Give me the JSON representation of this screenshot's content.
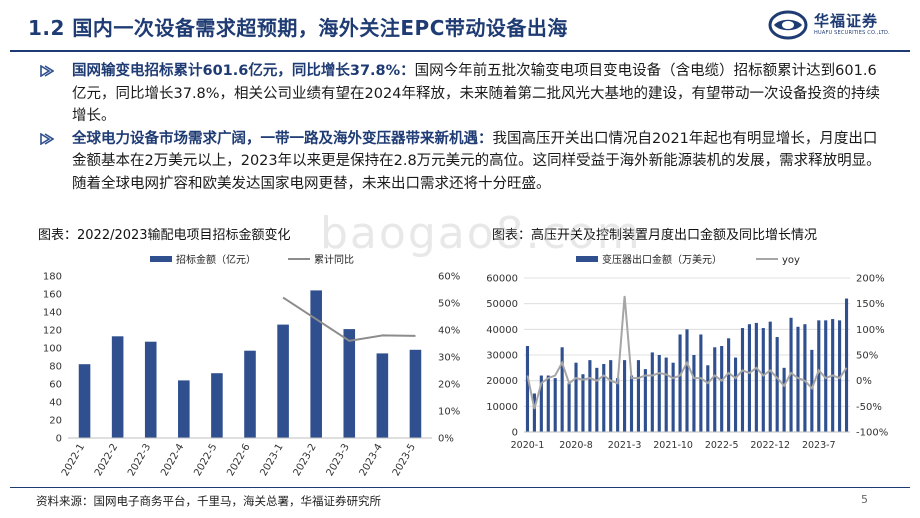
{
  "header": {
    "title": "1.2 国内一次设备需求超预期，海外关注EPC带动设备出海",
    "logo_cn": "华福证券",
    "logo_en": "HUAFU SECURITIES CO.,LTD."
  },
  "bullets": [
    {
      "highlight": "国网输变电招标累计601.6亿元，同比增长37.8%：",
      "body": "国网今年前五批次输变电项目变电设备（含电缆）招标额累计达到601.6亿元，同比增长37.8%，相关公司业绩有望在2024年释放，未来随着第二批风光大基地的建设，有望带动一次设备投资的持续增长。"
    },
    {
      "highlight": "全球电力设备市场需求广阔，一带一路及海外变压器带来新机遇：",
      "body": "我国高压开关出口情况自2021年起也有明显增长，月度出口金额基本在2万美元以上，2023年以来更是保持在2.8万元美元的高位。这同样受益于海外新能源装机的发展，需求释放明显。随着全球电网扩容和欧美发达国家电网更替，未来出口需求还将十分旺盛。"
    }
  ],
  "watermark": "baogao8.com",
  "captions": {
    "left": "图表：2022/2023输配电项目招标金额变化",
    "right": "图表：高压开关及控制装置月度出口金额及同比增长情况"
  },
  "chart_data": [
    {
      "type": "bar",
      "title": "",
      "categories": [
        "2022-1",
        "2022-2",
        "2022-3",
        "2022-4",
        "2022-5",
        "2022-6",
        "2023-1",
        "2023-2",
        "2023-3",
        "2023-4",
        "2023-5"
      ],
      "series": [
        {
          "name": "招标金额（亿元）",
          "type": "bar",
          "axis": "left",
          "color": "#2f4f8f",
          "values": [
            82,
            113,
            107,
            64,
            72,
            97,
            126,
            164,
            121,
            94,
            98
          ]
        },
        {
          "name": "累计同比",
          "type": "line",
          "axis": "right",
          "color": "#8c8c8c",
          "values": [
            null,
            null,
            null,
            null,
            null,
            null,
            0.52,
            0.44,
            0.36,
            0.38,
            0.378
          ]
        }
      ],
      "yleft": {
        "min": 0,
        "max": 180,
        "ticks": [
          "0",
          "20",
          "40",
          "60",
          "80",
          "100",
          "120",
          "140",
          "160",
          "180"
        ]
      },
      "yright": {
        "min": 0,
        "max": 0.6,
        "ticks": [
          "0%",
          "10%",
          "20%",
          "30%",
          "40%",
          "50%",
          "60%"
        ]
      },
      "grid": false,
      "legend": "top"
    },
    {
      "type": "bar",
      "title": "",
      "x_tick_labels": [
        "2020-1",
        "2020-8",
        "2021-3",
        "2021-10",
        "2022-5",
        "2022-12",
        "2023-7"
      ],
      "x_tick_indices": [
        0,
        7,
        14,
        21,
        28,
        35,
        42
      ],
      "series": [
        {
          "name": "变压器出口金额（万美元）",
          "type": "bar",
          "axis": "left",
          "color": "#2f4f8f",
          "values": [
            33500,
            15000,
            22000,
            22000,
            21000,
            33000,
            19000,
            27000,
            22500,
            28000,
            25000,
            26500,
            28000,
            21000,
            28000,
            22000,
            28000,
            24500,
            31000,
            30000,
            29000,
            27000,
            38000,
            40000,
            30000,
            38000,
            26000,
            33000,
            33500,
            36500,
            29000,
            40500,
            42000,
            42500,
            40500,
            43000,
            37000,
            25000,
            44500,
            41000,
            42000,
            32000,
            43500,
            43500,
            44000,
            43500,
            52000
          ]
        },
        {
          "name": "yoy",
          "type": "line",
          "axis": "right",
          "color": "#a6a6a6",
          "values": [
            0.1,
            -0.55,
            -0.05,
            0.05,
            0.1,
            0.35,
            -0.05,
            0.05,
            0.02,
            0.05,
            0.0,
            0.1,
            0.0,
            -0.05,
            1.65,
            0.05,
            0.05,
            0.1,
            0.1,
            0.15,
            0.12,
            0.05,
            0.1,
            0.35,
            0.05,
            0.05,
            -0.05,
            0.1,
            0.0,
            0.15,
            0.05,
            0.2,
            0.15,
            0.25,
            0.1,
            0.2,
            0.05,
            -0.1,
            0.15,
            0.05,
            0.0,
            -0.15,
            0.2,
            0.05,
            0.1,
            0.05,
            0.25
          ]
        }
      ],
      "yleft": {
        "min": 0,
        "max": 60000,
        "ticks": [
          "0",
          "10000",
          "20000",
          "30000",
          "40000",
          "50000",
          "60000"
        ]
      },
      "yright": {
        "min": -1.0,
        "max": 2.0,
        "ticks": [
          "-100%",
          "-50%",
          "0%",
          "50%",
          "100%",
          "150%",
          "200%"
        ]
      },
      "grid": true,
      "legend": "top"
    }
  ],
  "footer": {
    "source": "资料来源：国网电子商务平台，千里马，海关总署，华福证券研究所",
    "page": "5"
  },
  "colors": {
    "brand": "#1f3b73",
    "bar": "#2f4f8f",
    "line": "#8c8c8c"
  }
}
